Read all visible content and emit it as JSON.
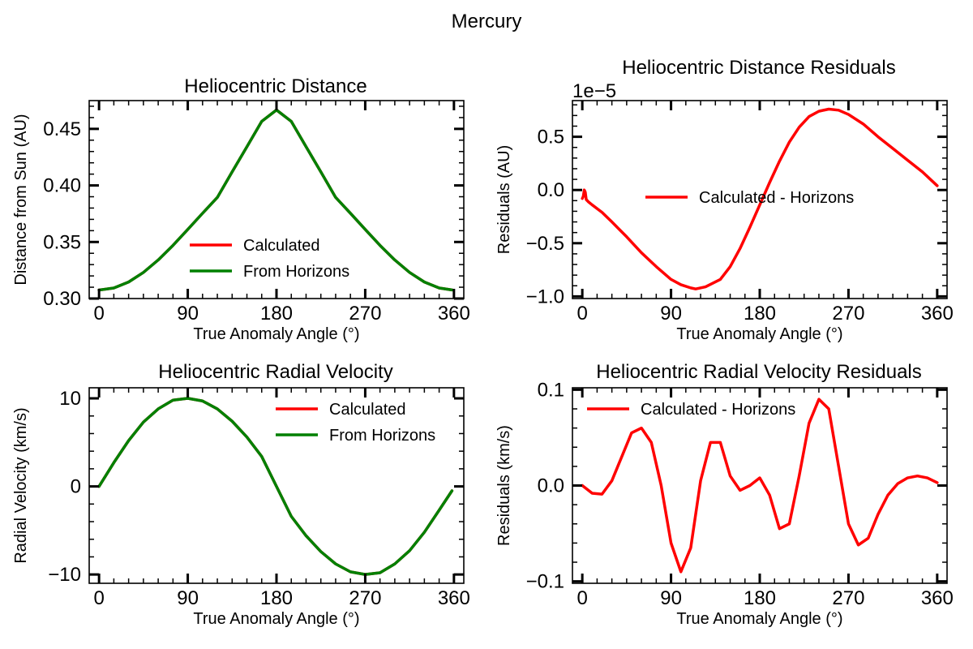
{
  "figure": {
    "suptitle": "Mercury"
  },
  "colors": {
    "calculated": "#ff0000",
    "horizons": "#008000"
  },
  "chart_data": [
    {
      "id": "dist",
      "type": "line",
      "title": "Heliocentric Distance",
      "xlabel": "True Anomaly Angle (°)",
      "ylabel": "Distance from Sun (AU)",
      "xlim": [
        -10,
        370
      ],
      "ylim": [
        0.3,
        0.475
      ],
      "xticks": [
        0,
        90,
        180,
        270,
        360
      ],
      "yticks": [
        0.3,
        0.35,
        0.4,
        0.45
      ],
      "ytick_labels": [
        "0.30",
        "0.35",
        "0.40",
        "0.45"
      ],
      "offset_text": "",
      "legend": {
        "position": "lower-center",
        "entries": [
          "Calculated",
          "From Horizons"
        ]
      },
      "series": [
        {
          "name": "Calculated",
          "color": "#ff0000",
          "x": [
            0,
            15,
            30,
            45,
            60,
            75,
            90,
            105,
            120,
            135,
            150,
            165,
            180,
            195,
            210,
            225,
            240,
            255,
            270,
            285,
            300,
            315,
            330,
            345,
            358
          ],
          "y": [
            0.3075,
            0.3093,
            0.3146,
            0.3231,
            0.3341,
            0.347,
            0.3611,
            0.3754,
            0.3894,
            0.412,
            0.4342,
            0.4566,
            0.4667,
            0.4566,
            0.4342,
            0.412,
            0.3894,
            0.3754,
            0.3611,
            0.347,
            0.3341,
            0.3231,
            0.3146,
            0.3093,
            0.3076
          ]
        },
        {
          "name": "From Horizons",
          "color": "#008000",
          "x": [
            0,
            15,
            30,
            45,
            60,
            75,
            90,
            105,
            120,
            135,
            150,
            165,
            180,
            195,
            210,
            225,
            240,
            255,
            270,
            285,
            300,
            315,
            330,
            345,
            358
          ],
          "y": [
            0.3075,
            0.3093,
            0.3146,
            0.3231,
            0.3341,
            0.347,
            0.3611,
            0.3754,
            0.3894,
            0.412,
            0.4342,
            0.4566,
            0.4667,
            0.4566,
            0.4342,
            0.412,
            0.3894,
            0.3754,
            0.3611,
            0.347,
            0.3341,
            0.3231,
            0.3146,
            0.3093,
            0.3076
          ]
        }
      ]
    },
    {
      "id": "distres",
      "type": "line",
      "title": "Heliocentric Distance Residuals",
      "xlabel": "True Anomaly Angle (°)",
      "ylabel": "Residuals (AU)",
      "xlim": [
        -10,
        370
      ],
      "ylim": [
        -1.02,
        0.84
      ],
      "xticks": [
        0,
        90,
        180,
        270,
        360
      ],
      "yticks": [
        -1.0,
        -0.5,
        0.0,
        0.5
      ],
      "ytick_labels": [
        "−1.0",
        "−0.5",
        "0.0",
        "0.5"
      ],
      "offset_text": "1e−5",
      "legend": {
        "position": "center-right",
        "entries": [
          "Calculated - Horizons"
        ]
      },
      "series": [
        {
          "name": "Calculated - Horizons",
          "color": "#ff0000",
          "x": [
            0,
            1,
            2,
            3,
            4,
            6,
            10,
            20,
            30,
            45,
            60,
            75,
            90,
            100,
            110,
            115,
            125,
            140,
            150,
            160,
            170,
            180,
            190,
            200,
            210,
            220,
            230,
            240,
            250,
            260,
            270,
            285,
            300,
            315,
            330,
            345,
            360
          ],
          "y": [
            -0.08,
            -0.06,
            0.0,
            -0.02,
            -0.09,
            -0.11,
            -0.14,
            -0.21,
            -0.3,
            -0.44,
            -0.59,
            -0.72,
            -0.84,
            -0.89,
            -0.92,
            -0.93,
            -0.91,
            -0.84,
            -0.72,
            -0.55,
            -0.35,
            -0.14,
            0.07,
            0.27,
            0.45,
            0.59,
            0.69,
            0.74,
            0.76,
            0.75,
            0.71,
            0.62,
            0.5,
            0.39,
            0.28,
            0.17,
            0.04
          ]
        }
      ]
    },
    {
      "id": "vel",
      "type": "line",
      "title": "Heliocentric Radial Velocity",
      "xlabel": "True Anomaly Angle (°)",
      "ylabel": "Radial Velocity (km/s)",
      "xlim": [
        -10,
        370
      ],
      "ylim": [
        -11,
        11.2
      ],
      "xticks": [
        0,
        90,
        180,
        270,
        360
      ],
      "yticks": [
        -10,
        0,
        10
      ],
      "ytick_labels": [
        "−10",
        "0",
        "10"
      ],
      "offset_text": "",
      "legend": {
        "position": "upper-right",
        "entries": [
          "Calculated",
          "From Horizons"
        ]
      },
      "series": [
        {
          "name": "Calculated",
          "color": "#ff0000",
          "x": [
            0,
            15,
            30,
            45,
            60,
            75,
            90,
            105,
            120,
            135,
            150,
            165,
            180,
            195,
            210,
            225,
            240,
            255,
            270,
            285,
            300,
            315,
            330,
            345,
            358
          ],
          "y": [
            0.0,
            2.7,
            5.2,
            7.3,
            8.8,
            9.8,
            10.0,
            9.7,
            8.8,
            7.4,
            5.6,
            3.4,
            0.0,
            -3.4,
            -5.6,
            -7.4,
            -8.8,
            -9.7,
            -10.0,
            -9.8,
            -8.8,
            -7.3,
            -5.2,
            -2.7,
            -0.5
          ]
        },
        {
          "name": "From Horizons",
          "color": "#008000",
          "x": [
            0,
            15,
            30,
            45,
            60,
            75,
            90,
            105,
            120,
            135,
            150,
            165,
            180,
            195,
            210,
            225,
            240,
            255,
            270,
            285,
            300,
            315,
            330,
            345,
            358
          ],
          "y": [
            0.0,
            2.7,
            5.2,
            7.3,
            8.8,
            9.8,
            10.0,
            9.7,
            8.8,
            7.4,
            5.6,
            3.4,
            0.0,
            -3.4,
            -5.6,
            -7.4,
            -8.8,
            -9.7,
            -10.0,
            -9.8,
            -8.8,
            -7.3,
            -5.2,
            -2.7,
            -0.5
          ]
        }
      ]
    },
    {
      "id": "velres",
      "type": "line",
      "title": "Heliocentric Radial Velocity Residuals",
      "xlabel": "True Anomaly Angle (°)",
      "ylabel": "Residuals (km/s)",
      "xlim": [
        -10,
        370
      ],
      "ylim": [
        -0.102,
        0.102
      ],
      "xticks": [
        0,
        90,
        180,
        270,
        360
      ],
      "yticks": [
        -0.1,
        0.0,
        0.1
      ],
      "ytick_labels": [
        "−0.1",
        "0.0",
        "0.1"
      ],
      "offset_text": "",
      "legend": {
        "position": "upper-left",
        "entries": [
          "Calculated - Horizons"
        ]
      },
      "series": [
        {
          "name": "Calculated - Horizons",
          "color": "#ff0000",
          "x": [
            0,
            10,
            20,
            30,
            40,
            50,
            60,
            70,
            80,
            90,
            100,
            110,
            120,
            130,
            140,
            150,
            160,
            170,
            180,
            190,
            200,
            210,
            220,
            230,
            240,
            250,
            260,
            270,
            280,
            290,
            300,
            310,
            320,
            330,
            340,
            350,
            360
          ],
          "y": [
            0.0,
            -0.008,
            -0.009,
            0.005,
            0.03,
            0.055,
            0.06,
            0.045,
            0.0,
            -0.06,
            -0.09,
            -0.065,
            0.005,
            0.045,
            0.045,
            0.01,
            -0.005,
            0.0,
            0.008,
            -0.01,
            -0.045,
            -0.04,
            0.01,
            0.065,
            0.09,
            0.08,
            0.02,
            -0.04,
            -0.062,
            -0.055,
            -0.03,
            -0.01,
            0.002,
            0.008,
            0.01,
            0.008,
            0.003
          ]
        }
      ]
    }
  ]
}
